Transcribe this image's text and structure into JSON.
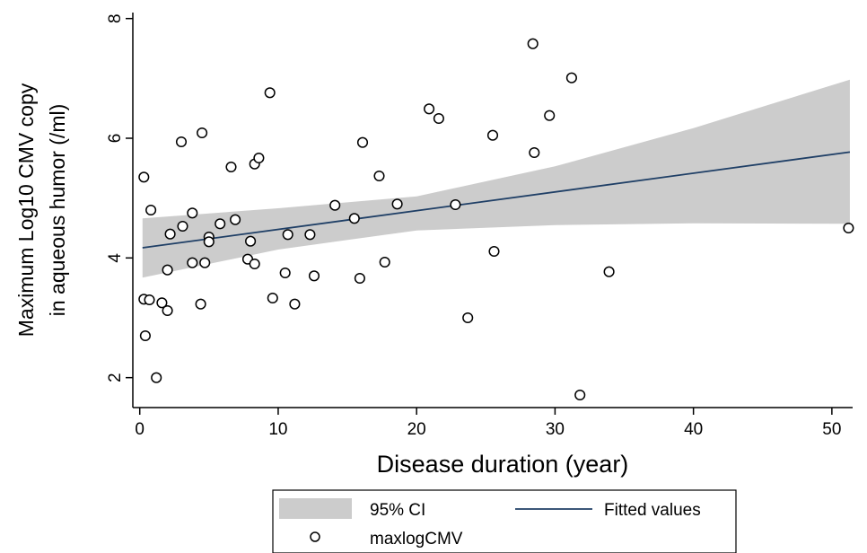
{
  "chart_data": {
    "type": "scatter",
    "xlabel": "Disease duration (year)",
    "ylabel_lines": [
      "Maximum Log10 CMV copy",
      "in aqueous humor (/ml)"
    ],
    "xlim": [
      -0.5,
      51.5
    ],
    "ylim": [
      1.5,
      8.1
    ],
    "x_ticks": [
      0,
      10,
      20,
      30,
      40,
      50
    ],
    "y_ticks": [
      2,
      4,
      6,
      8
    ],
    "grid": false,
    "legend_placement": "bottom",
    "colors": {
      "ci": "#cccccc",
      "line": "#1f3f66",
      "marker_fill": "#ffffff",
      "marker_edge": "#000000"
    },
    "legend": [
      {
        "key": "ci",
        "label": "95% CI"
      },
      {
        "key": "line",
        "label": "Fitted values"
      },
      {
        "key": "points",
        "label": "maxlogCMV"
      }
    ],
    "fitted_line": {
      "x": [
        0.2,
        51.3
      ],
      "y": [
        4.17,
        5.77
      ]
    },
    "ci_band": {
      "x": [
        0.2,
        10,
        20,
        30,
        40,
        51.3
      ],
      "lower": [
        3.67,
        4.14,
        4.46,
        4.55,
        4.58,
        4.57
      ],
      "upper": [
        4.66,
        4.83,
        5.03,
        5.53,
        6.17,
        6.98
      ]
    },
    "points": [
      {
        "x": 0.3,
        "y": 5.35
      },
      {
        "x": 0.8,
        "y": 4.8
      },
      {
        "x": 0.3,
        "y": 3.31
      },
      {
        "x": 0.7,
        "y": 3.3
      },
      {
        "x": 0.4,
        "y": 2.7
      },
      {
        "x": 1.2,
        "y": 2.0
      },
      {
        "x": 1.6,
        "y": 3.25
      },
      {
        "x": 2.0,
        "y": 3.12
      },
      {
        "x": 2.0,
        "y": 3.8
      },
      {
        "x": 2.2,
        "y": 4.4
      },
      {
        "x": 3.0,
        "y": 5.94
      },
      {
        "x": 3.1,
        "y": 4.53
      },
      {
        "x": 3.8,
        "y": 4.75
      },
      {
        "x": 3.8,
        "y": 3.92
      },
      {
        "x": 4.4,
        "y": 3.23
      },
      {
        "x": 4.5,
        "y": 6.09
      },
      {
        "x": 4.7,
        "y": 3.92
      },
      {
        "x": 5.0,
        "y": 4.35
      },
      {
        "x": 5.0,
        "y": 4.27
      },
      {
        "x": 5.8,
        "y": 4.57
      },
      {
        "x": 6.6,
        "y": 5.52
      },
      {
        "x": 6.9,
        "y": 4.64
      },
      {
        "x": 7.8,
        "y": 3.98
      },
      {
        "x": 8.0,
        "y": 4.28
      },
      {
        "x": 8.3,
        "y": 5.57
      },
      {
        "x": 8.3,
        "y": 3.9
      },
      {
        "x": 8.6,
        "y": 5.67
      },
      {
        "x": 9.4,
        "y": 6.76
      },
      {
        "x": 9.6,
        "y": 3.33
      },
      {
        "x": 10.5,
        "y": 3.75
      },
      {
        "x": 10.7,
        "y": 4.39
      },
      {
        "x": 11.2,
        "y": 3.23
      },
      {
        "x": 12.3,
        "y": 4.39
      },
      {
        "x": 12.6,
        "y": 3.7
      },
      {
        "x": 14.1,
        "y": 4.88
      },
      {
        "x": 15.5,
        "y": 4.66
      },
      {
        "x": 15.9,
        "y": 3.66
      },
      {
        "x": 16.1,
        "y": 5.93
      },
      {
        "x": 17.3,
        "y": 5.37
      },
      {
        "x": 17.7,
        "y": 3.93
      },
      {
        "x": 18.6,
        "y": 4.9
      },
      {
        "x": 20.9,
        "y": 6.49
      },
      {
        "x": 21.6,
        "y": 6.33
      },
      {
        "x": 22.8,
        "y": 4.89
      },
      {
        "x": 23.7,
        "y": 3.0
      },
      {
        "x": 25.5,
        "y": 6.05
      },
      {
        "x": 25.6,
        "y": 4.11
      },
      {
        "x": 28.4,
        "y": 7.58
      },
      {
        "x": 28.5,
        "y": 5.76
      },
      {
        "x": 29.6,
        "y": 6.38
      },
      {
        "x": 31.2,
        "y": 7.01
      },
      {
        "x": 31.8,
        "y": 1.71
      },
      {
        "x": 33.9,
        "y": 3.77
      },
      {
        "x": 51.2,
        "y": 4.5
      }
    ]
  }
}
